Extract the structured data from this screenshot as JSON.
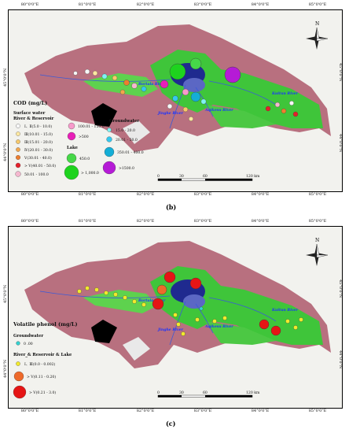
{
  "lon_ticks": [
    "80°0'0\"E",
    "81°0'0\"E",
    "82°0'0\"E",
    "83°0'0\"E",
    "84°0'0\"E",
    "85°0'0\"E"
  ],
  "lat_ticks": [
    "45°0'0\"N",
    "44°0'0\"N"
  ],
  "north": "N",
  "rivers": {
    "bortala": "Bortala River",
    "jinghe": "Jinghe River",
    "aqikesu": "Aqikesu River",
    "kuitun": "Kuitun River"
  },
  "scale": {
    "ticks": [
      "0",
      "30",
      "60",
      "120 km"
    ]
  },
  "panel_b": {
    "label": "(b)",
    "title": "COD (mg/L)",
    "surface_title": "Surface water",
    "surface_sub": "River & Reservoir",
    "surface_items": [
      "Ⅰ、Ⅱ(5.0 - 10.0)",
      "Ⅲ(10.01 - 15.0)",
      "Ⅲ(15.01 - 20.0)",
      "Ⅳ(20.01 - 30.0)",
      "Ⅴ(30.01 - 40.0)",
      "> Ⅴ(40.01 - 50.0)",
      "50.01 - 100.0"
    ],
    "mid_items": [
      "100.01 - 150.0",
      ">500"
    ],
    "lake_title": "Lake",
    "lake_items": [
      "450.0",
      "> 1,000.0"
    ],
    "gw_title": "Groundwater",
    "gw_items": [
      "15.0 - 20.0",
      "20.01 - 50.0",
      "350.01 - 400.0",
      ">1500.0"
    ],
    "colors": {
      "s1": "#f7f7f7",
      "s2": "#ffe8a0",
      "s3": "#f7c96a",
      "s4": "#f2a64d",
      "s5": "#ee7e2e",
      "s6": "#e5202a",
      "s7": "#f5b8cf",
      "m1": "#f79acb",
      "m2": "#e81fb8",
      "l1": "#46d848",
      "l2": "#1ed31e",
      "g1": "#7ff2f2",
      "g2": "#35c8ee",
      "g3": "#14aed6",
      "g4": "#b51bd6"
    }
  },
  "panel_c": {
    "label": "(c)",
    "title": "Volatile phenol (mg/L)",
    "gw_title": "Groundwater",
    "gw_item": "0 .00",
    "rl_title": "River_& Reservoir & Lake",
    "rl_items": [
      "Ⅰ、Ⅲ(0.0 - 0.002)",
      "> Ⅴ(0.11 - 0.20)",
      "> Ⅴ(0.21 - 3.0)"
    ],
    "colors": {
      "gw": "#33d1cf",
      "r1": "#f2ea2c",
      "r2": "#ee6a2a",
      "r3": "#e51515"
    }
  }
}
